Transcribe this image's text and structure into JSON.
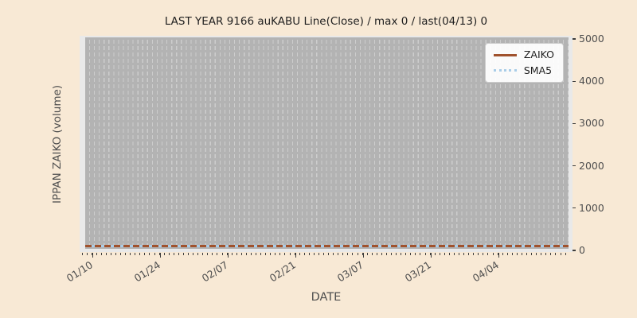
{
  "title": "LAST YEAR 9166 auKABU Line(Close) / max 0 / last(04/13) 0",
  "x_axis_title": "DATE",
  "y_axis_title": "IPPAN ZAIKO (volume)",
  "legend": {
    "position": "upper-right",
    "items": [
      {
        "label": "ZAIKO",
        "color": "#a0522d",
        "style": "solid"
      },
      {
        "label": "SMA5",
        "color": "#a9cde8",
        "style": "dotted"
      }
    ]
  },
  "colors": {
    "figure_bg": "#f8e9d5",
    "plot_bg": "#e9e9e9",
    "plot_fill": "#b3b3b3",
    "gridline": "#cdcdcd",
    "tick_mark": "#3d3d3d",
    "tick_text": "#4f4f4f",
    "title_text": "#1f1f1f",
    "zaiko_line": "#a0522d",
    "sma5_line": "#a9cde8"
  },
  "chart_data": {
    "type": "line",
    "title": "LAST YEAR 9166 auKABU Line(Close) / max 0 / last(04/13) 0",
    "xlabel": "DATE",
    "ylabel": "IPPAN ZAIKO (volume)",
    "x_tick_labels": [
      "01/10",
      "01/24",
      "02/07",
      "02/21",
      "03/07",
      "03/21",
      "04/04"
    ],
    "y_ticks": [
      0,
      1000,
      2000,
      3000,
      4000,
      5000
    ],
    "ylim": [
      0,
      5000
    ],
    "grid": "vertical-dashed-daily",
    "legend_position": "upper-right",
    "series": [
      {
        "name": "ZAIKO",
        "style": "solid",
        "color": "#a0522d",
        "value_constant": 0
      },
      {
        "name": "SMA5",
        "style": "dotted",
        "color": "#a9cde8",
        "value_constant": 0
      }
    ],
    "max_value": 0,
    "last_point": {
      "date": "04/13",
      "value": 0
    }
  }
}
